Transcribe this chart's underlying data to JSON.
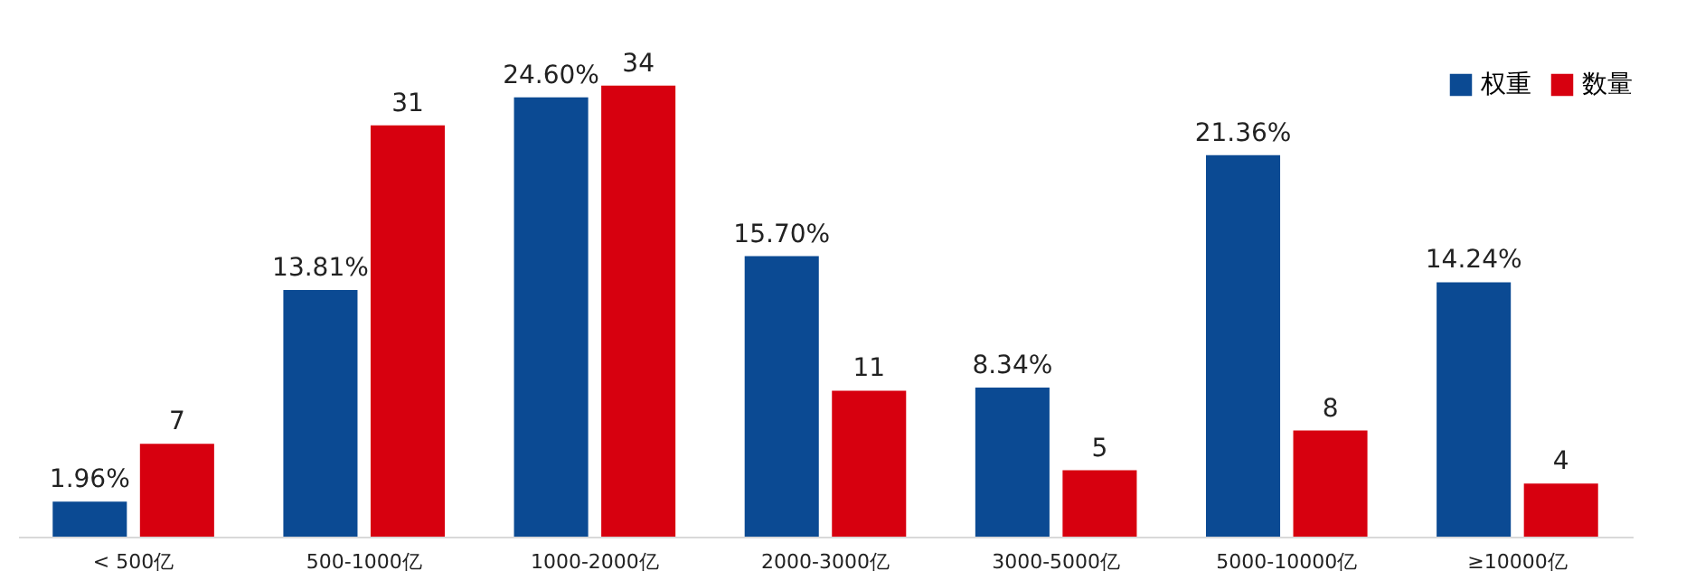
{
  "chart_data": {
    "type": "bar",
    "categories": [
      "< 500亿",
      "500-1000亿",
      "1000-2000亿",
      "2000-3000亿",
      "3000-5000亿",
      "5000-10000亿",
      "≥10000亿"
    ],
    "series": [
      {
        "name": "权重",
        "color": "#0b4a93",
        "values": [
          1.96,
          13.81,
          24.6,
          15.7,
          8.34,
          21.36,
          14.24
        ],
        "value_labels": [
          "1.96%",
          "13.81%",
          "24.60%",
          "15.70%",
          "8.34%",
          "21.36%",
          "14.24%"
        ]
      },
      {
        "name": "数量",
        "color": "#d7000f",
        "axis": "y2",
        "values": [
          7,
          31,
          34,
          11,
          5,
          8,
          4
        ],
        "value_labels": [
          "7",
          "31",
          "34",
          "11",
          "5",
          "8",
          "4"
        ]
      }
    ],
    "tick_labels": "x",
    "legend": "top right"
  }
}
